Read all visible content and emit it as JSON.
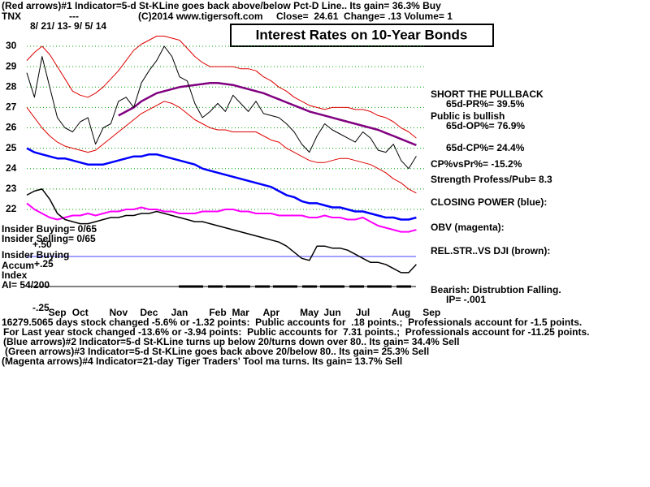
{
  "chart_data": {
    "type": "line",
    "title": "Interest Rates on 10-Year Bonds",
    "symbol": "TNX",
    "symbol_note": "---",
    "copyright": "(C)2014 www.tigersoft.com",
    "quote": "Close=  24.61  Change= .13 Volume= 1",
    "date_range": "8/ 21/ 13- 9/ 5/ 14",
    "signal_lines": [
      "(Red arrows)#1 Indicator=5-d St-KLine goes back above/below Pct-D Line.. Its gain= 36.3% Buy",
      "(Blue arrows)#2 Indicator=5-d St-KLine turns up below 20/turns down over 80.. Its gain= 34.4% Sell",
      "(Green arrows)#3 Indicator=5-d St-KLine goes back above 20/below 80.. Its gain= 25.3% Sell",
      "(Magenta arrows)#4 Indicator=21-day Tiger Traders' Tool ma turns. Its gain= 13.7% Sell"
    ],
    "stats_lines": [
      "16279.5065 days stock changed -5.6% or -1.32 points:  Public accounts for  .18 points.;  Professionals account for -1.5 points.",
      "For Last year stock changed -13.6% or -3.94 points:  Public accounts for  7.31 points.;  Professionals account for -11.25 points."
    ],
    "right_notes": [
      "SHORT THE PULLBACK",
      "65d-PR%= 39.5%",
      "Public is bullish",
      "65d-OP%= 76.9%",
      "65d-CP%= 24.4%",
      "CP%vsPr%= -15.2%",
      "Strength Profess/Pub= 8.3",
      "Bearish: Distrubtion Falling.",
      "IP= -.001"
    ],
    "insider_notes": [
      "Insider Buying= 0/65",
      "Insider Selling= 0/65",
      "+.50",
      "Insider Buying",
      "Accum",
      "+.25",
      "Index",
      "AI= 54/200",
      "-.25"
    ],
    "categories": [
      null,
      null,
      null,
      null,
      "Sep",
      null,
      null,
      "Oct",
      null,
      null,
      null,
      null,
      "Nov",
      null,
      null,
      null,
      "Dec",
      null,
      null,
      null,
      "Jan",
      null,
      null,
      null,
      null,
      "Feb",
      null,
      null,
      "Mar",
      null,
      null,
      null,
      "Apr",
      null,
      null,
      null,
      null,
      "May",
      null,
      null,
      "Jun",
      null,
      null,
      null,
      "Jul",
      null,
      null,
      null,
      null,
      "Aug",
      null,
      null,
      null,
      "Sep"
    ],
    "ylim": [
      18.5,
      31
    ],
    "yticks": [
      22,
      23,
      24,
      25,
      26,
      27,
      28,
      29,
      30
    ],
    "grid": true,
    "series": [
      {
        "color": "#e00000",
        "values": [
          29.3,
          29.7,
          30.0,
          29.6,
          29.0,
          28.4,
          27.8,
          27.6,
          27.5,
          27.7,
          28.0,
          28.4,
          28.8,
          29.3,
          29.8,
          30.1,
          30.3,
          30.5,
          30.5,
          30.4,
          30.3,
          29.9,
          29.5,
          29.2,
          29.0,
          29.0,
          29.0,
          29.0,
          28.9,
          28.9,
          28.8,
          28.5,
          28.3,
          28.0,
          27.8,
          27.5,
          27.3,
          27.1,
          27.0,
          26.9,
          27.0,
          27.0,
          27.0,
          26.9,
          26.9,
          26.8,
          26.6,
          26.5,
          26.3,
          26.0,
          25.8,
          25.5,
          null,
          null
        ]
      },
      {
        "color": "#e00000",
        "values": [
          27.0,
          26.5,
          26.0,
          25.6,
          25.3,
          25.1,
          25.0,
          24.9,
          24.8,
          24.9,
          25.2,
          25.5,
          25.8,
          26.1,
          26.4,
          26.7,
          26.9,
          27.1,
          27.3,
          27.2,
          27.0,
          26.7,
          26.4,
          26.2,
          26.0,
          25.9,
          25.9,
          25.8,
          25.8,
          25.8,
          25.8,
          25.6,
          25.4,
          25.3,
          25.0,
          24.8,
          24.6,
          24.4,
          24.3,
          24.3,
          24.4,
          24.5,
          24.5,
          24.4,
          24.3,
          24.2,
          24.0,
          23.8,
          23.5,
          23.3,
          23.0,
          22.8,
          null,
          null
        ]
      },
      {
        "color": "#0000ff",
        "name": "CLOSING POWER (blue):",
        "values": [
          25.0,
          24.8,
          24.7,
          24.6,
          24.5,
          24.5,
          24.4,
          24.3,
          24.2,
          24.2,
          24.2,
          24.3,
          24.4,
          24.5,
          24.6,
          24.6,
          24.7,
          24.7,
          24.6,
          24.5,
          24.4,
          24.3,
          24.2,
          24.0,
          23.9,
          23.8,
          23.7,
          23.6,
          23.5,
          23.4,
          23.3,
          23.2,
          23.1,
          22.9,
          22.7,
          22.6,
          22.4,
          22.3,
          22.3,
          22.2,
          22.1,
          22.1,
          22.0,
          21.9,
          21.9,
          21.8,
          21.7,
          21.6,
          21.6,
          21.5,
          21.5,
          21.6,
          null,
          null
        ]
      },
      {
        "color": "#ff00ff",
        "name": "OBV (magenta):",
        "values": [
          22.3,
          22.0,
          21.8,
          21.6,
          21.5,
          21.6,
          21.7,
          21.7,
          21.8,
          21.7,
          21.8,
          21.9,
          21.9,
          22.0,
          22.0,
          22.1,
          22.0,
          22.0,
          21.9,
          21.9,
          21.8,
          21.8,
          21.8,
          21.9,
          21.9,
          21.9,
          22.0,
          22.0,
          21.9,
          21.9,
          21.8,
          21.8,
          21.8,
          21.7,
          21.7,
          21.7,
          21.7,
          21.6,
          21.6,
          21.7,
          21.6,
          21.6,
          21.5,
          21.5,
          21.6,
          21.4,
          21.2,
          21.1,
          21.0,
          20.9,
          20.9,
          21.0,
          null,
          null
        ]
      },
      {
        "color": "#000000",
        "name": "REL.STR..VS DJI (brown):",
        "values": [
          22.7,
          22.9,
          23.0,
          22.5,
          21.8,
          21.5,
          21.4,
          21.3,
          21.3,
          21.4,
          21.5,
          21.6,
          21.6,
          21.7,
          21.7,
          21.8,
          21.8,
          21.9,
          21.8,
          21.7,
          21.6,
          21.5,
          21.4,
          21.4,
          21.3,
          21.2,
          21.1,
          21.0,
          20.9,
          20.8,
          20.7,
          20.6,
          20.5,
          20.4,
          20.2,
          19.9,
          19.6,
          19.5,
          20.2,
          20.2,
          20.1,
          20.1,
          20.0,
          19.8,
          19.6,
          19.4,
          19.4,
          19.3,
          19.1,
          18.9,
          18.9,
          19.3,
          null,
          null
        ]
      },
      {
        "color": "#800080",
        "values": [
          null,
          null,
          null,
          null,
          null,
          null,
          null,
          null,
          null,
          null,
          null,
          null,
          26.6,
          26.8,
          27.0,
          27.3,
          27.5,
          27.7,
          27.8,
          27.9,
          28.0,
          28.05,
          28.1,
          28.15,
          28.2,
          28.2,
          28.15,
          28.1,
          28.0,
          27.9,
          27.8,
          27.7,
          27.55,
          27.4,
          27.25,
          27.1,
          26.95,
          26.8,
          26.7,
          26.6,
          26.5,
          26.4,
          26.3,
          26.2,
          26.1,
          26.0,
          25.9,
          25.75,
          25.6,
          25.45,
          25.3,
          25.15,
          null,
          null
        ]
      },
      {
        "color": "#000000",
        "values": [
          28.7,
          27.5,
          29.5,
          28.0,
          26.5,
          26.0,
          25.8,
          26.3,
          26.5,
          25.2,
          26.0,
          26.2,
          27.3,
          27.5,
          27.0,
          28.2,
          28.8,
          29.3,
          30.0,
          29.5,
          28.5,
          28.3,
          27.2,
          26.5,
          26.8,
          27.2,
          26.8,
          27.6,
          27.2,
          26.8,
          27.3,
          26.7,
          26.6,
          26.5,
          26.2,
          25.8,
          25.2,
          24.8,
          25.6,
          26.2,
          25.9,
          25.7,
          25.5,
          25.3,
          25.8,
          25.5,
          24.9,
          24.8,
          25.2,
          24.4,
          24.0,
          24.61,
          null,
          null
        ]
      }
    ]
  }
}
